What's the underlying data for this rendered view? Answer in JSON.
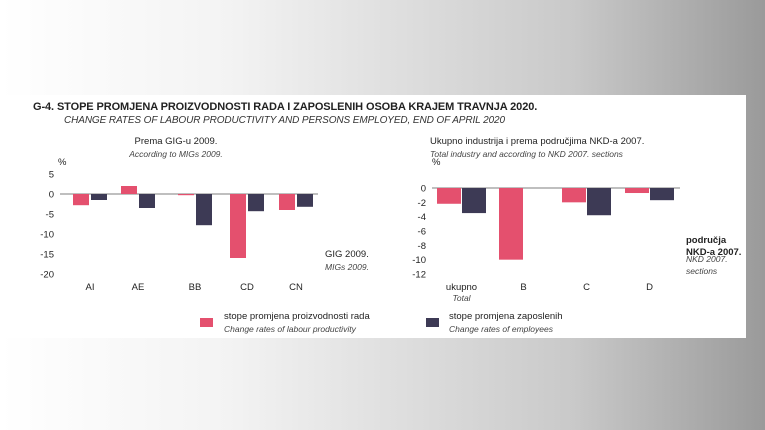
{
  "figure": {
    "title": "G-4.  STOPE PROMJENA PROIZVODNOSTI RADA I ZAPOSLENIH OSOBA KRAJEM TRAVNJA 2020.",
    "subtitle": "CHANGE RATES OF LABOUR PRODUCTIVITY AND PERSONS EMPLOYED, END OF APRIL 2020"
  },
  "legend": {
    "productivity_label": "stope promjena proizvodnosti rada",
    "productivity_sub": "Change rates of labour productivity",
    "employees_label": "stope promjena zaposlenih",
    "employees_sub": "Change rates of employees"
  },
  "colors": {
    "productivity": "#e4506e",
    "employees": "#3d3a55"
  },
  "chart_data": [
    {
      "type": "bar",
      "title": "Prema GIG-u 2009.",
      "subtitle": "According to MIGs 2009.",
      "ylabel": "%",
      "xlabel": "GIG 2009.",
      "xlabel_sub": "MIGs 2009.",
      "ylim": [
        -20,
        5
      ],
      "yticks": [
        5,
        0,
        -5,
        -10,
        -15,
        -20
      ],
      "categories": [
        "AI",
        "AE",
        "BB",
        "CD",
        "CN"
      ],
      "category_subs": [
        "",
        "",
        "",
        "",
        ""
      ],
      "series": [
        {
          "name": "stope promjena proizvodnosti rada",
          "values": [
            -2.8,
            2.0,
            -0.3,
            -16.0,
            -4.0
          ]
        },
        {
          "name": "stope promjena zaposlenih",
          "values": [
            -1.5,
            -3.5,
            -7.8,
            -4.3,
            -3.2
          ]
        }
      ],
      "grid": false
    },
    {
      "type": "bar",
      "title": "Ukupno industrija i prema područjima NKD-a 2007.",
      "subtitle": "Total industry and according to NKD 2007. sections",
      "ylabel": "%",
      "xlabel": "područja NKD-a 2007.",
      "xlabel_sub": "NKD 2007. sections",
      "ylim": [
        -12,
        0
      ],
      "yticks": [
        0,
        -2,
        -4,
        -6,
        -8,
        -10,
        -12
      ],
      "categories": [
        "ukupno",
        "B",
        "C",
        "D"
      ],
      "category_subs": [
        "Total",
        "",
        "",
        ""
      ],
      "series": [
        {
          "name": "stope promjena proizvodnosti rada",
          "values": [
            -2.2,
            -10.0,
            -2.0,
            -0.7
          ]
        },
        {
          "name": "stope promjena zaposlenih",
          "values": [
            -3.5,
            0,
            -3.8,
            -1.7
          ]
        }
      ],
      "grid": false
    }
  ]
}
